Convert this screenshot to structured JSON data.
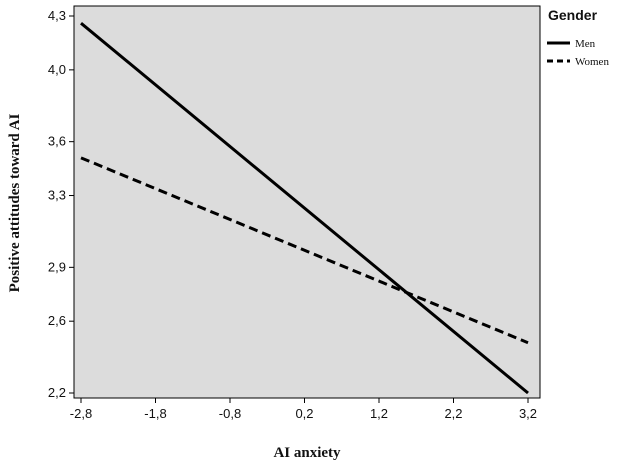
{
  "chart_data": {
    "type": "line",
    "xlabel": "AI anxiety",
    "ylabel": "Positive attitudes toward AI",
    "xlim": [
      -2.8,
      3.2
    ],
    "ylim": [
      2.2,
      4.3
    ],
    "x_ticks": [
      -2.8,
      -1.8,
      -0.8,
      0.2,
      1.2,
      2.2,
      3.2
    ],
    "x_tick_labels": [
      "-2,8",
      "-1,8",
      "-0,8",
      "0,2",
      "1,2",
      "2,2",
      "3,2"
    ],
    "y_ticks": [
      2.2,
      2.6,
      2.9,
      3.3,
      3.6,
      4.0,
      4.3
    ],
    "y_tick_labels": [
      "2,2",
      "2,6",
      "2,9",
      "3,3",
      "3,6",
      "4,0",
      "4,3"
    ],
    "grid": false,
    "plot_background": "#dcdcdc",
    "legend": {
      "title": "Gender",
      "position": "right"
    },
    "series": [
      {
        "name": "Men",
        "style": "solid",
        "color": "#000000",
        "x": [
          -2.8,
          3.2
        ],
        "y": [
          4.26,
          2.2
        ]
      },
      {
        "name": "Women",
        "style": "dashed",
        "color": "#000000",
        "x": [
          -2.8,
          3.2
        ],
        "y": [
          3.51,
          2.48
        ]
      }
    ]
  }
}
